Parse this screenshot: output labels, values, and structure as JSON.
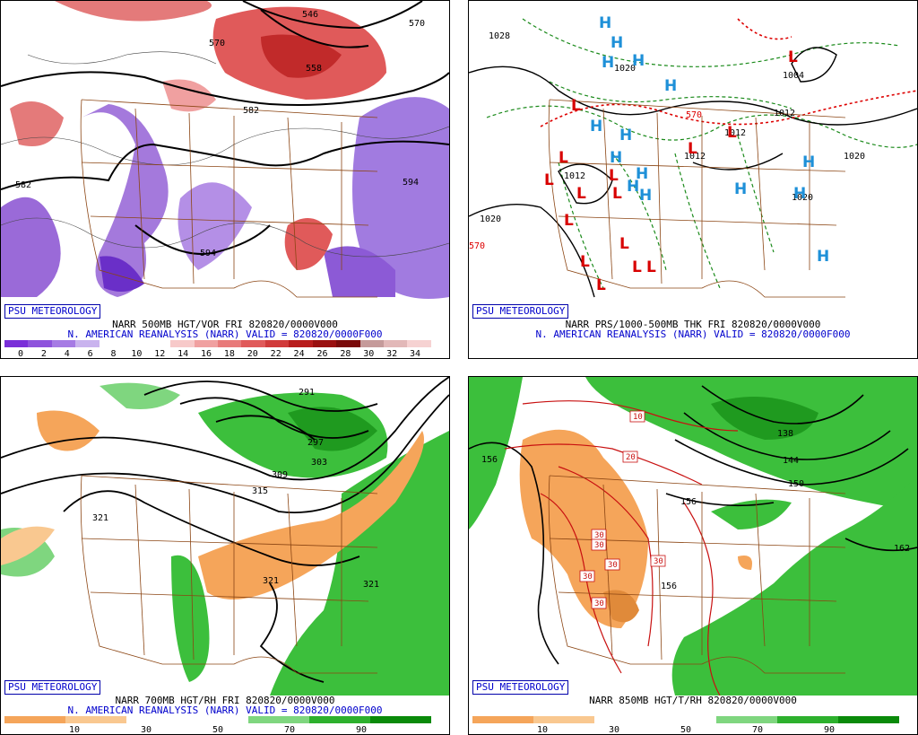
{
  "badge": "PSU METEOROLOGY",
  "panels": [
    {
      "caption1": "NARR 500MB HGT/VOR FRI 820820/0000V000",
      "caption2": "N. AMERICAN REANALYSIS (NARR) VALID = 820820/0000F000",
      "legend_ticks": [
        "0",
        "2",
        "4",
        "6",
        "8",
        "10",
        "12",
        "14",
        "16",
        "18",
        "20",
        "22",
        "24",
        "26",
        "28",
        "30",
        "32",
        "34"
      ],
      "legend_colors": [
        "#7a2fd8",
        "#8e53dc",
        "#a67be4",
        "#c9b3ee",
        "#ffffff",
        "#ffffff",
        "#ffffff",
        "#f7c9c9",
        "#f0a0a0",
        "#e87a7a",
        "#e05a5a",
        "#d13a3a",
        "#b81c1c",
        "#9a1010",
        "#7a0a0a",
        "#c59a9a",
        "#e2b8b8",
        "#f6d2d2"
      ],
      "contours": [
        "570",
        "570",
        "558",
        "582",
        "582",
        "594",
        "594",
        "546"
      ]
    },
    {
      "caption1": "NARR PRS/1000-500MB THK FRI 820820/0000V000",
      "caption2": "N. AMERICAN REANALYSIS (NARR) VALID = 820820/0000F000",
      "pressure_labels": [
        "1028",
        "1020",
        "1004",
        "1012",
        "1012",
        "1020",
        "1020",
        "1012",
        "1020",
        "1012",
        "570",
        "570"
      ],
      "high_symbol": "H",
      "low_symbol": "L"
    },
    {
      "caption1": "NARR 700MB HGT/RH FRI 820820/0000V000",
      "caption2": "N. AMERICAN REANALYSIS (NARR) VALID = 820820/0000F000",
      "legend_ticks": [
        "10",
        "30",
        "50",
        "70",
        "90"
      ],
      "legend_colors": [
        "#f5a55a",
        "#f9c890",
        "#ffffff",
        "#ffffff",
        "#7fd67f",
        "#2db02d",
        "#0a8a0a"
      ],
      "contours": [
        "291",
        "297",
        "303",
        "309",
        "315",
        "321",
        "321",
        "321"
      ]
    },
    {
      "caption1": "NARR 850MB HGT/T/RH 820820/0000V000",
      "legend_ticks": [
        "10",
        "30",
        "50",
        "70",
        "90"
      ],
      "legend_colors": [
        "#f5a55a",
        "#f9c890",
        "#ffffff",
        "#ffffff",
        "#7fd67f",
        "#2db02d",
        "#0a8a0a"
      ],
      "contours": [
        "156",
        "156",
        "156",
        "138",
        "144",
        "150",
        "162"
      ],
      "temp_boxes": [
        "10",
        "20",
        "30",
        "30",
        "30",
        "30",
        "30",
        "30"
      ]
    }
  ]
}
